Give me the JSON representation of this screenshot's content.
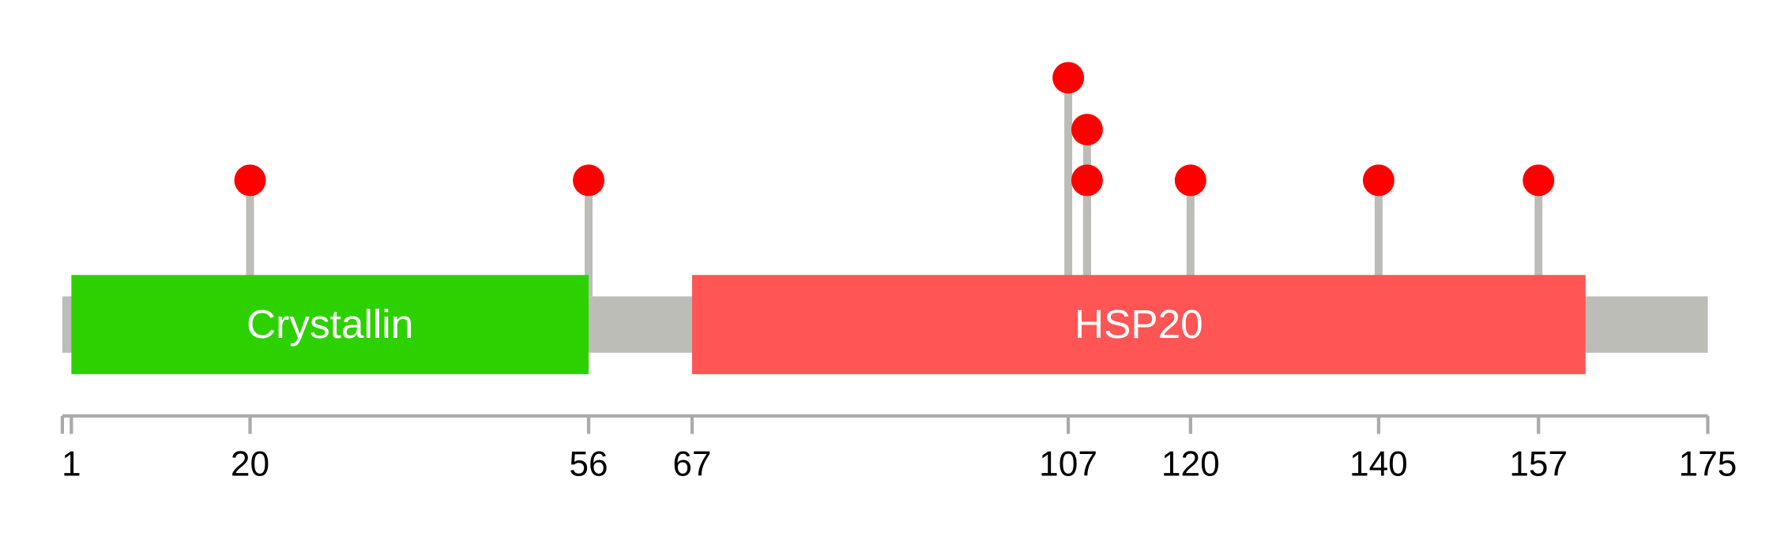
{
  "protein": {
    "length": 175,
    "backbone_color": "#BBBDB6",
    "domains": [
      {
        "name": "Crystallin",
        "start": 1,
        "end": 56,
        "color": "#2ED100"
      },
      {
        "name": "HSP20",
        "start": 67,
        "end": 162,
        "color": "#FF5555"
      }
    ],
    "mutations": [
      {
        "position": 20,
        "stack": 0
      },
      {
        "position": 56,
        "stack": 0
      },
      {
        "position": 107,
        "stack": 2
      },
      {
        "position": 109,
        "stack": 1
      },
      {
        "position": 109,
        "stack": 0
      },
      {
        "position": 120,
        "stack": 0
      },
      {
        "position": 140,
        "stack": 0
      },
      {
        "position": 157,
        "stack": 0
      }
    ],
    "mutation_color": "#FF0000",
    "stem_color": "#BBBDB6"
  },
  "axis": {
    "ticks": [
      "1",
      "20",
      "56",
      "67",
      "107",
      "120",
      "140",
      "157",
      "175"
    ],
    "color": "#AAAAAA"
  }
}
